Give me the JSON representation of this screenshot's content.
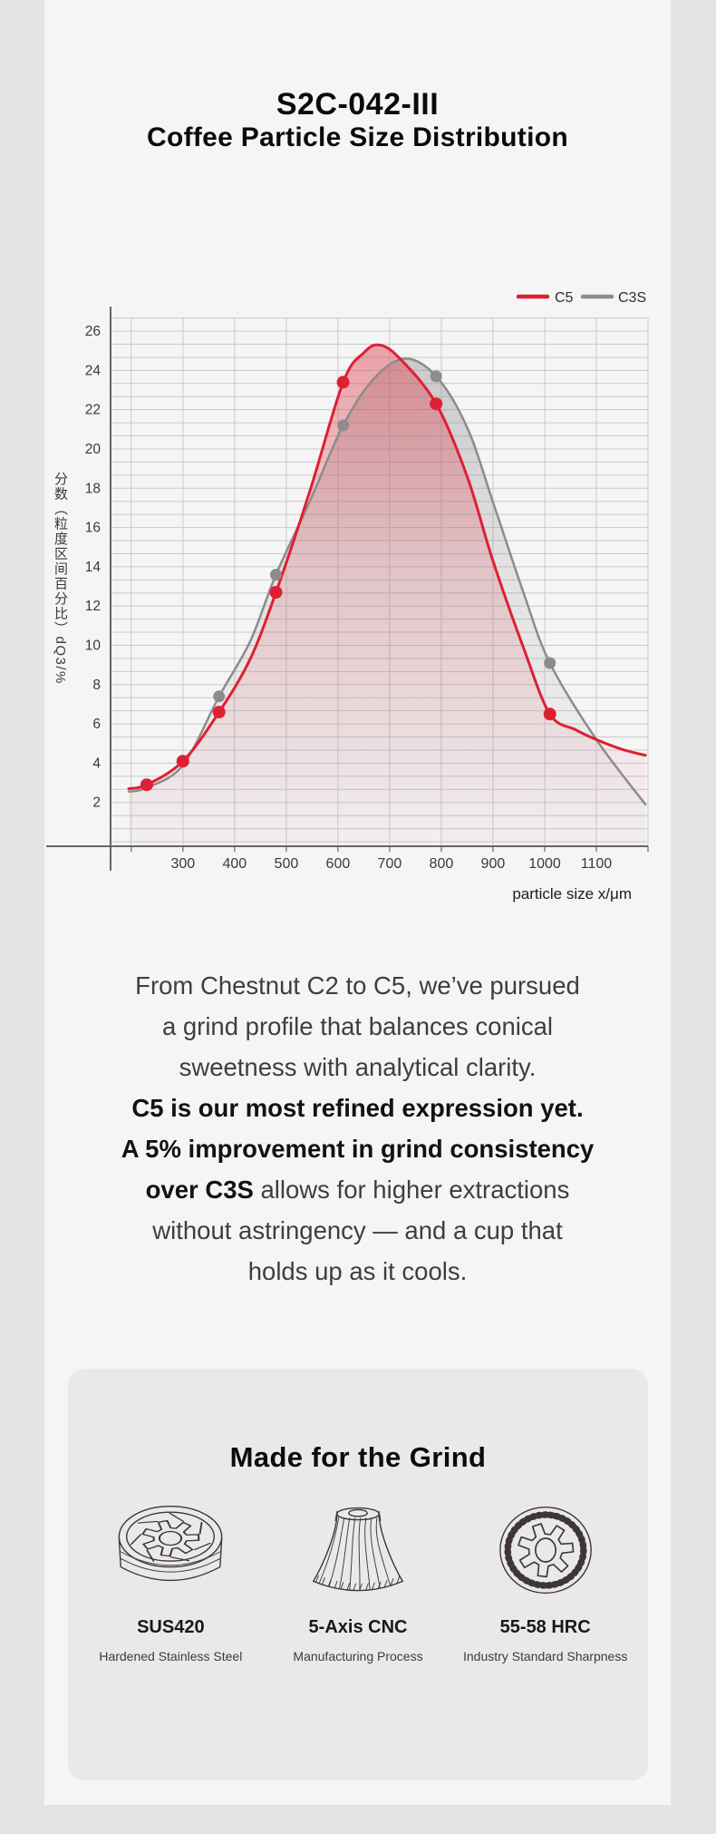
{
  "page": {
    "title": "S2C-042-III",
    "subtitle": "Coffee Particle Size Distribution"
  },
  "chart_data": {
    "type": "area",
    "title": "",
    "xlabel": "particle size x/μm",
    "ylabel": "分数（粒度区间百分比）dQ3/%",
    "x_range": [
      160,
      1200
    ],
    "y_range": [
      0,
      26.67
    ],
    "x_ticks": [
      300,
      400,
      500,
      600,
      700,
      800,
      900,
      1000,
      1100
    ],
    "y_ticks": [
      2,
      4,
      6,
      8,
      10,
      12,
      14,
      16,
      18,
      20,
      22,
      24,
      26
    ],
    "grid": {
      "x_start": 200,
      "x_end": 1200,
      "x_step": 100,
      "y_minor_step": 0.6667,
      "on": true
    },
    "legend_position": "top-right",
    "axis_color": "#666666",
    "grid_color": "#c9c9c9",
    "series": [
      {
        "name": "C5",
        "color": "#df1f33",
        "fill_top": "rgba(223,70,84,0.50)",
        "fill_mid": "rgba(223,70,84,0.20)",
        "fill_bottom": "rgba(223,70,84,0.02)",
        "points": [
          [
            230,
            2.9
          ],
          [
            300,
            4.1
          ],
          [
            370,
            6.6
          ],
          [
            480,
            12.7
          ],
          [
            610,
            23.4
          ],
          [
            790,
            22.3
          ],
          [
            1010,
            6.5
          ]
        ],
        "curve": [
          [
            195,
            2.7
          ],
          [
            230,
            2.9
          ],
          [
            300,
            4.1
          ],
          [
            370,
            6.6
          ],
          [
            430,
            9.3
          ],
          [
            480,
            12.7
          ],
          [
            545,
            17.8
          ],
          [
            610,
            23.4
          ],
          [
            650,
            24.9
          ],
          [
            680,
            25.3
          ],
          [
            720,
            24.6
          ],
          [
            790,
            22.3
          ],
          [
            850,
            18.6
          ],
          [
            900,
            14.3
          ],
          [
            960,
            9.8
          ],
          [
            1010,
            6.5
          ],
          [
            1060,
            5.7
          ],
          [
            1100,
            5.2
          ],
          [
            1150,
            4.7
          ],
          [
            1195,
            4.4
          ]
        ]
      },
      {
        "name": "C3S",
        "color": "#8c8c8c",
        "fill_top": "rgba(135,135,135,0.42)",
        "fill_mid": "rgba(135,135,135,0.18)",
        "fill_bottom": "rgba(135,135,135,0.02)",
        "points": [
          [
            370,
            7.4
          ],
          [
            480,
            13.6
          ],
          [
            610,
            21.2
          ],
          [
            790,
            23.7
          ],
          [
            1010,
            9.1
          ]
        ],
        "curve": [
          [
            195,
            2.55
          ],
          [
            230,
            2.75
          ],
          [
            300,
            3.9
          ],
          [
            370,
            7.4
          ],
          [
            430,
            10.2
          ],
          [
            480,
            13.6
          ],
          [
            545,
            17.3
          ],
          [
            610,
            21.2
          ],
          [
            670,
            23.6
          ],
          [
            730,
            24.6
          ],
          [
            790,
            23.7
          ],
          [
            850,
            21.1
          ],
          [
            900,
            17.3
          ],
          [
            960,
            12.6
          ],
          [
            1010,
            9.1
          ],
          [
            1100,
            5.2
          ],
          [
            1195,
            1.9
          ]
        ]
      }
    ]
  },
  "body_text": {
    "lines": [
      [
        {
          "t": "From Chestnut C2 to C5, we’ve pursued",
          "b": false
        }
      ],
      [
        {
          "t": "a grind profile that balances conical",
          "b": false
        }
      ],
      [
        {
          "t": "sweetness with analytical clarity.",
          "b": false
        }
      ],
      [
        {
          "t": "C5 is our most refined expression yet.",
          "b": true
        }
      ],
      [
        {
          "t": "A 5% improvement in grind consistency",
          "b": true
        }
      ],
      [
        {
          "t": "over C3S",
          "b": true
        },
        {
          "t": " allows for higher extractions",
          "b": false
        }
      ],
      [
        {
          "t": "without astringency — and a cup that",
          "b": false
        }
      ],
      [
        {
          "t": "holds up as it cools.",
          "b": false
        }
      ]
    ]
  },
  "features": {
    "heading": "Made for the Grind",
    "items": [
      {
        "icon": "ring-burr-icon",
        "title": "SUS420",
        "subtitle": "Hardened Stainless Steel"
      },
      {
        "icon": "conical-burr-icon",
        "title": "5-Axis CNC",
        "subtitle": "Manufacturing Process"
      },
      {
        "icon": "flat-burr-icon",
        "title": "55-58 HRC",
        "subtitle": "Industry Standard Sharpness"
      }
    ]
  }
}
